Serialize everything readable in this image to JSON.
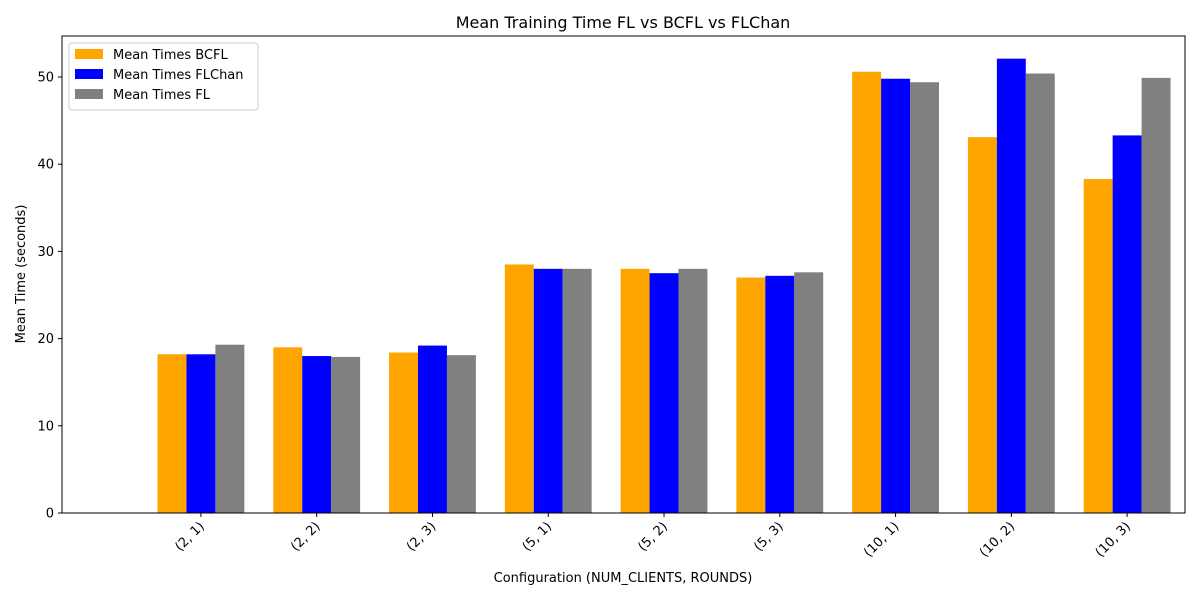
{
  "chart_data": {
    "type": "bar",
    "title": "Mean Training Time FL vs BCFL vs FLChan",
    "xlabel": "Configuration (NUM_CLIENTS, ROUNDS)",
    "ylabel": "Mean Time (seconds)",
    "categories": [
      "(2, 1)",
      "(2, 2)",
      "(2, 3)",
      "(5, 1)",
      "(5, 2)",
      "(5, 3)",
      "(10, 1)",
      "(10, 2)",
      "(10, 3)"
    ],
    "series": [
      {
        "name": "Mean Times BCFL",
        "color": "#FFA500",
        "values": [
          18.2,
          19.0,
          18.4,
          28.5,
          28.0,
          27.0,
          50.6,
          43.1,
          38.3
        ]
      },
      {
        "name": "Mean Times FLChan",
        "color": "#0000FF",
        "values": [
          18.2,
          18.0,
          19.2,
          28.0,
          27.5,
          27.2,
          49.8,
          52.1,
          43.3
        ]
      },
      {
        "name": "Mean Times FL",
        "color": "#808080",
        "values": [
          19.3,
          17.9,
          18.1,
          28.0,
          28.0,
          27.6,
          49.4,
          50.4,
          49.9
        ]
      }
    ],
    "ylim": [
      0,
      54.7
    ],
    "yticks": [
      0,
      10,
      20,
      30,
      40,
      50
    ],
    "grid": false,
    "legend_position": "top-left",
    "x_tick_rotation": -45
  }
}
